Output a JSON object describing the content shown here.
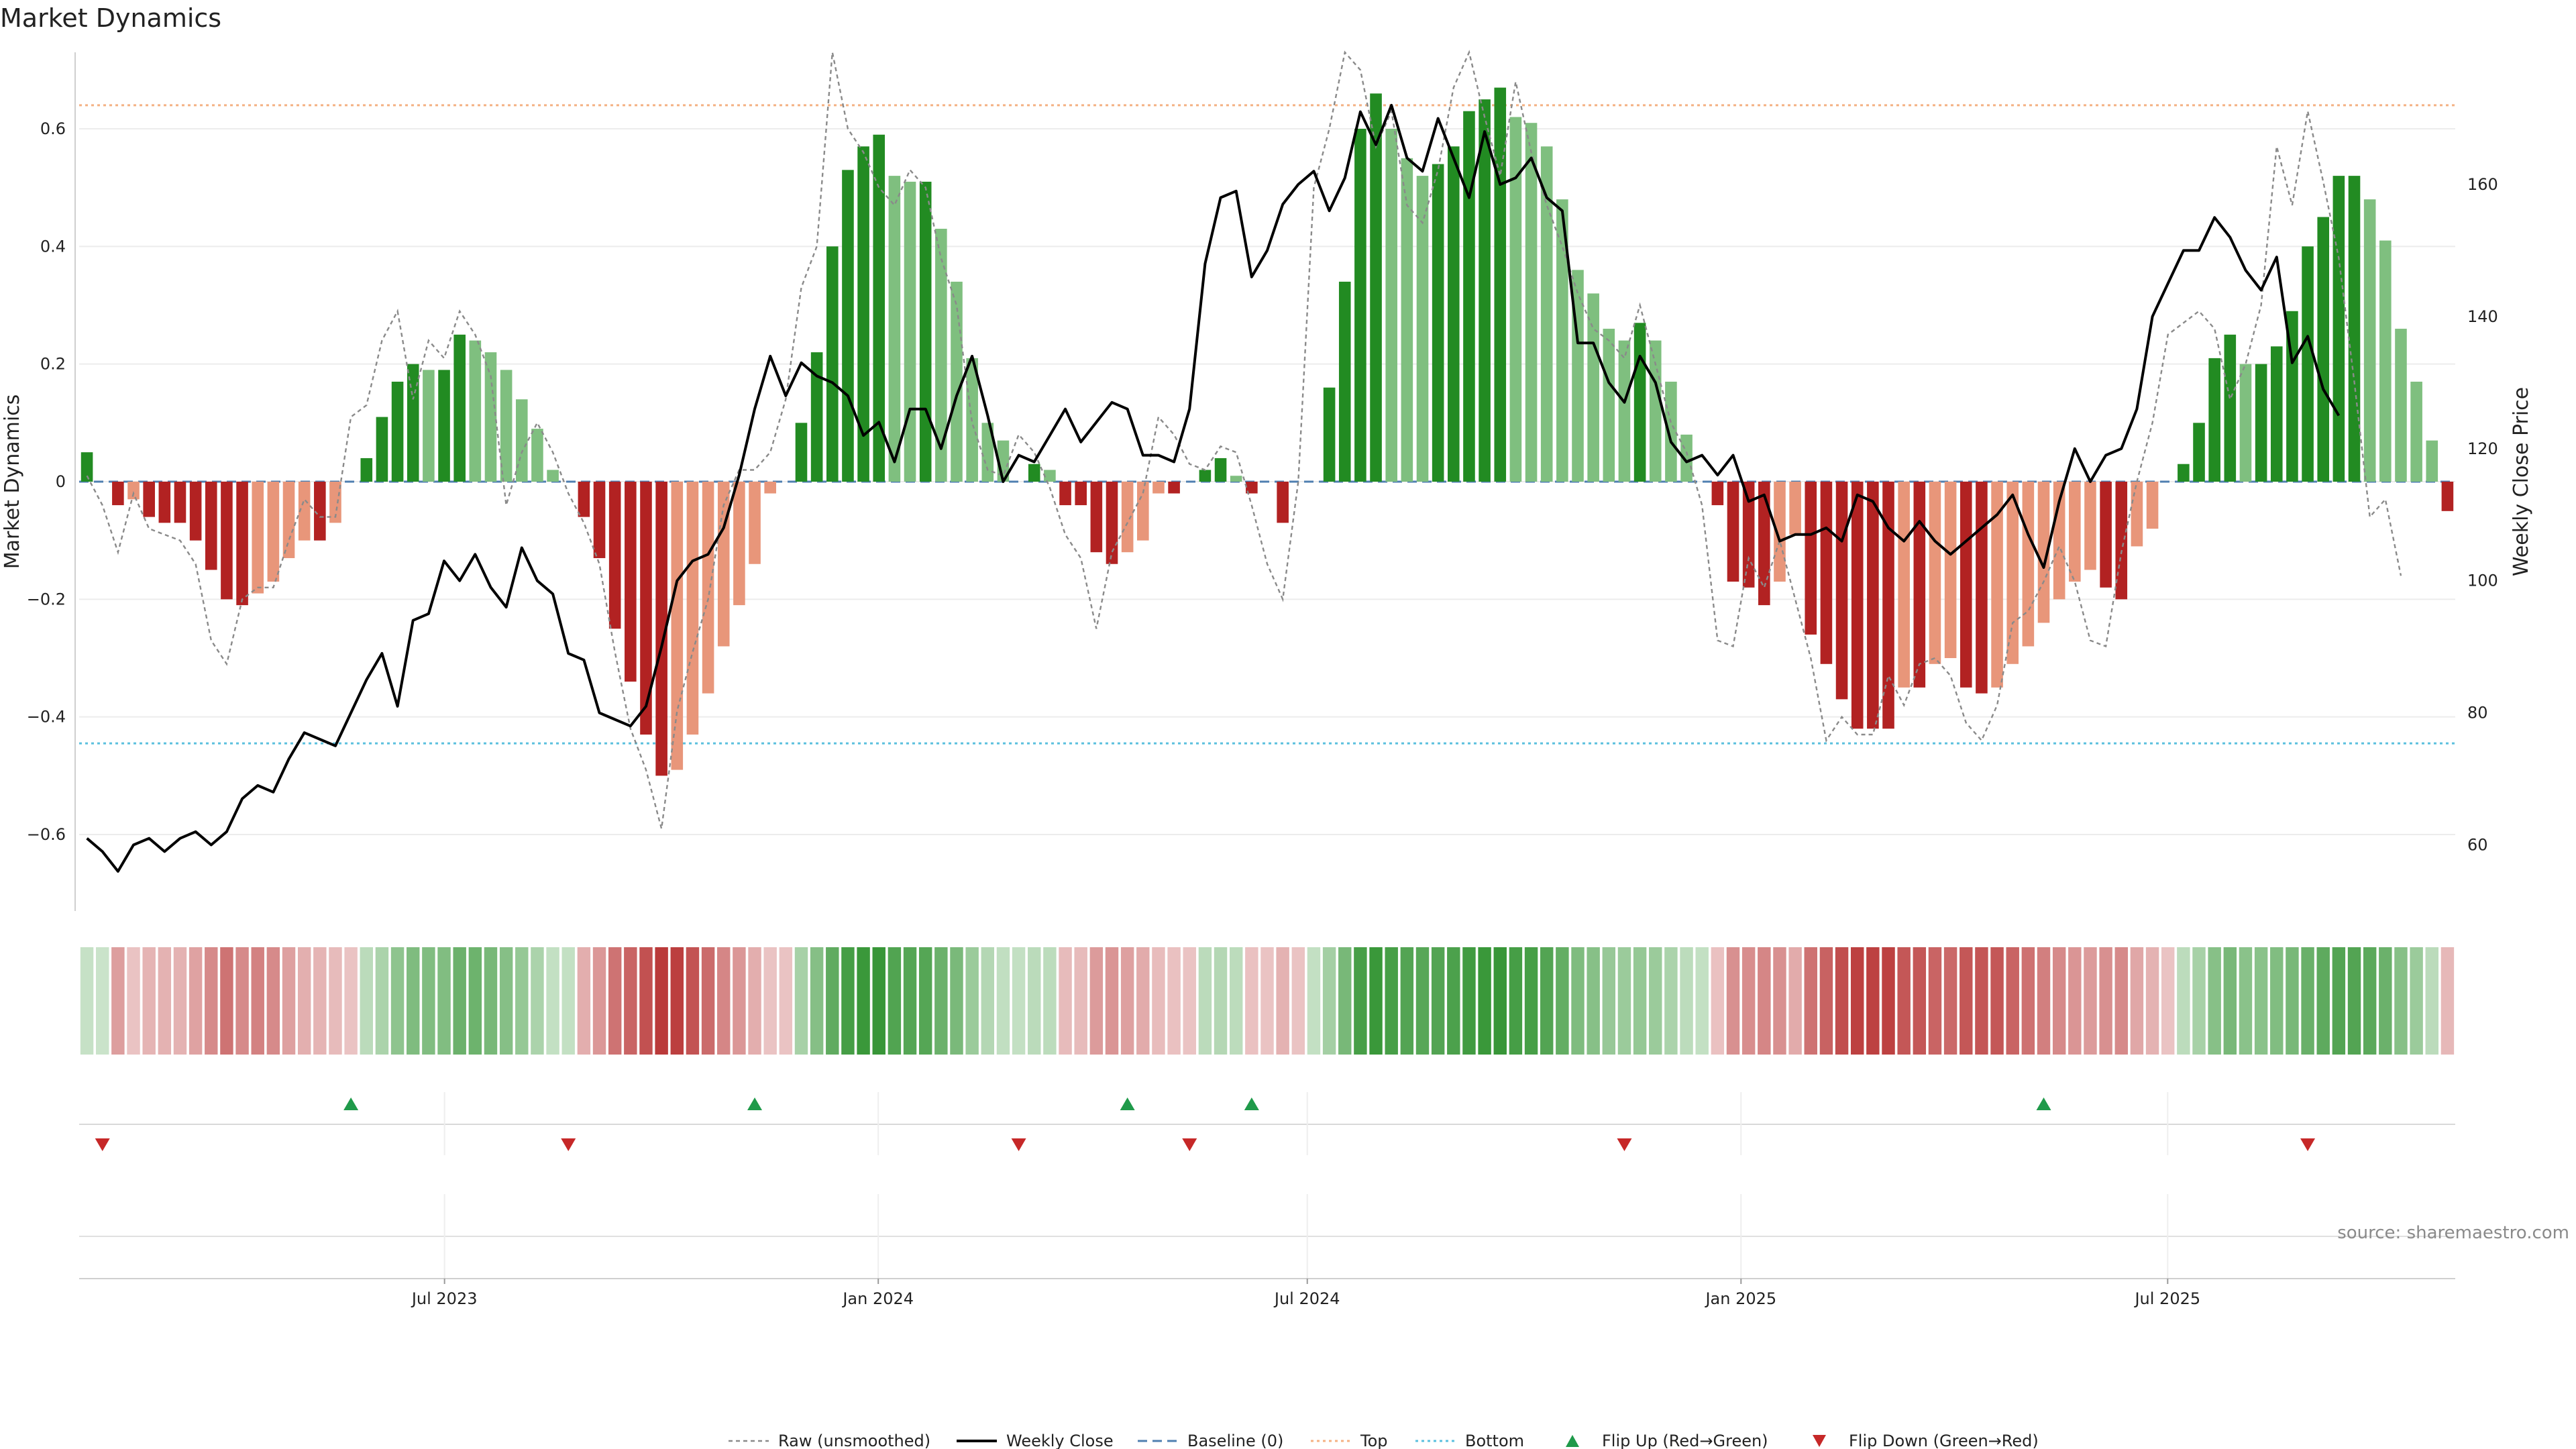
{
  "chart_data": {
    "type": "bar",
    "title": "Market Dynamics",
    "ylabel": "Market Dynamics",
    "y2label": "Weekly Close Price",
    "ylim": [
      -0.73,
      0.73
    ],
    "y2lim": [
      50,
      180
    ],
    "y_ticks": [
      -0.6,
      -0.4,
      -0.2,
      0,
      0.2,
      0.4,
      0.6
    ],
    "y_tick_labels": [
      "−0.6",
      "−0.4",
      "−0.2",
      "0",
      "0.2",
      "0.4",
      "0.6"
    ],
    "y2_ticks": [
      60,
      80,
      100,
      120,
      140,
      160
    ],
    "y2_tick_labels": [
      "60",
      "80",
      "100",
      "120",
      "140",
      "160"
    ],
    "x_start": "2023-01-27",
    "x_end": "2025-10-31",
    "x_ticks": [
      "2023-07-01",
      "2024-01-01",
      "2024-07-01",
      "2025-01-01",
      "2025-07-01"
    ],
    "x_tick_labels": [
      "Jul 2023",
      "Jan 2024",
      "Jul 2024",
      "Jan 2025",
      "Jul 2025"
    ],
    "top_level": 0.64,
    "bottom_level": -0.445,
    "baseline": 0,
    "weeks": 145,
    "smoothed": [
      0.05,
      0.0,
      -0.04,
      -0.03,
      -0.06,
      -0.07,
      -0.07,
      -0.1,
      -0.15,
      -0.2,
      -0.21,
      -0.19,
      -0.17,
      -0.13,
      -0.1,
      -0.1,
      -0.07,
      0.0,
      0.04,
      0.11,
      0.17,
      0.2,
      0.19,
      0.19,
      0.25,
      0.24,
      0.22,
      0.19,
      0.14,
      0.09,
      0.02,
      0.0,
      -0.06,
      -0.13,
      -0.25,
      -0.34,
      -0.43,
      -0.5,
      -0.49,
      -0.43,
      -0.36,
      -0.28,
      -0.21,
      -0.14,
      -0.02,
      0.0,
      0.1,
      0.22,
      0.4,
      0.53,
      0.57,
      0.59,
      0.52,
      0.51,
      0.51,
      0.43,
      0.34,
      0.21,
      0.1,
      0.07,
      0.0,
      0.03,
      0.02,
      -0.04,
      -0.04,
      -0.12,
      -0.14,
      -0.12,
      -0.1,
      -0.02,
      -0.02,
      0.0,
      0.02,
      0.04,
      0.01,
      -0.02,
      0.0,
      -0.07,
      0.0,
      0.0,
      0.16,
      0.34,
      0.6,
      0.66,
      0.6,
      0.55,
      0.52,
      0.54,
      0.57,
      0.63,
      0.65,
      0.67,
      0.62,
      0.61,
      0.57,
      0.48,
      0.36,
      0.32,
      0.26,
      0.24,
      0.27,
      0.24,
      0.17,
      0.08,
      0.0,
      -0.04,
      -0.17,
      -0.18,
      -0.21,
      -0.17,
      -0.09,
      -0.26,
      -0.31,
      -0.37,
      -0.42,
      -0.42,
      -0.42,
      -0.35,
      -0.35,
      -0.31,
      -0.3,
      -0.35,
      -0.36,
      -0.35,
      -0.31,
      -0.28,
      -0.24,
      -0.2,
      -0.17,
      -0.15,
      -0.18,
      -0.2,
      -0.11,
      -0.08,
      0.0,
      0.03,
      0.1,
      0.21,
      0.25,
      0.2,
      0.2,
      0.23,
      0.29,
      0.4,
      0.45,
      0.52,
      0.52,
      0.48,
      0.41,
      0.26,
      0.17,
      0.07,
      -0.05
    ],
    "raw": [
      0.01,
      -0.04,
      -0.12,
      -0.02,
      -0.08,
      -0.09,
      -0.1,
      -0.14,
      -0.27,
      -0.31,
      -0.2,
      -0.18,
      -0.18,
      -0.1,
      -0.03,
      -0.06,
      -0.06,
      0.11,
      0.13,
      0.24,
      0.29,
      0.14,
      0.24,
      0.21,
      0.29,
      0.25,
      0.18,
      -0.04,
      0.05,
      0.1,
      0.05,
      -0.02,
      -0.07,
      -0.14,
      -0.29,
      -0.42,
      -0.49,
      -0.59,
      -0.39,
      -0.29,
      -0.2,
      -0.04,
      0.02,
      0.02,
      0.05,
      0.14,
      0.33,
      0.4,
      0.73,
      0.6,
      0.56,
      0.5,
      0.47,
      0.53,
      0.5,
      0.38,
      0.3,
      0.1,
      0.02,
      0.01,
      0.08,
      0.05,
      -0.01,
      -0.09,
      -0.13,
      -0.25,
      -0.12,
      -0.07,
      -0.02,
      0.11,
      0.08,
      0.03,
      0.02,
      0.06,
      0.05,
      -0.04,
      -0.14,
      -0.2,
      0.0,
      0.5,
      0.6,
      0.73,
      0.7,
      0.57,
      0.63,
      0.47,
      0.44,
      0.53,
      0.67,
      0.73,
      0.62,
      0.52,
      0.68,
      0.56,
      0.47,
      0.4,
      0.32,
      0.26,
      0.24,
      0.21,
      0.3,
      0.2,
      0.1,
      0.05,
      -0.04,
      -0.27,
      -0.28,
      -0.13,
      -0.18,
      -0.1,
      -0.2,
      -0.3,
      -0.44,
      -0.4,
      -0.43,
      -0.43,
      -0.33,
      -0.38,
      -0.31,
      -0.3,
      -0.33,
      -0.41,
      -0.44,
      -0.38,
      -0.24,
      -0.22,
      -0.17,
      -0.11,
      -0.17,
      -0.27,
      -0.28,
      -0.12,
      0.0,
      0.1,
      0.25,
      0.27,
      0.29,
      0.26,
      0.14,
      0.2,
      0.3,
      0.57,
      0.47,
      0.63,
      0.51,
      0.38,
      0.17,
      -0.06,
      -0.03,
      -0.16
    ],
    "close": [
      61,
      59,
      56,
      60,
      61,
      59,
      61,
      62,
      60,
      62,
      67,
      69,
      68,
      73,
      77,
      76,
      75,
      80,
      85,
      89,
      81,
      94,
      95,
      103,
      100,
      104,
      99,
      96,
      105,
      100,
      98,
      89,
      88,
      80,
      79,
      78,
      81,
      90,
      100,
      103,
      104,
      108,
      116,
      126,
      134,
      128,
      133,
      131,
      130,
      128,
      122,
      124,
      118,
      126,
      126,
      120,
      128,
      134,
      125,
      115,
      119,
      118,
      122,
      126,
      121,
      124,
      127,
      126,
      119,
      119,
      118,
      126,
      148,
      158,
      159,
      146,
      150,
      157,
      160,
      162,
      156,
      161,
      171,
      166,
      172,
      164,
      162,
      170,
      164,
      158,
      168,
      160,
      161,
      164,
      158,
      156,
      136,
      136,
      130,
      127,
      134,
      130,
      121,
      118,
      119,
      116,
      119,
      112,
      113,
      106,
      107,
      107,
      108,
      106,
      113,
      112,
      108,
      106,
      109,
      106,
      104,
      106,
      108,
      110,
      113,
      107,
      102,
      112,
      120,
      115,
      119,
      120,
      126,
      140,
      145,
      150,
      150,
      155,
      152,
      147,
      144,
      149,
      133,
      137,
      129,
      125
    ],
    "color_scale": [
      0.11,
      0.08,
      0.36,
      0.12,
      0.22,
      0.24,
      0.24,
      0.33,
      0.49,
      0.62,
      0.48,
      0.54,
      0.48,
      0.35,
      0.25,
      0.22,
      0.18,
      0.12,
      0.18,
      0.28,
      0.46,
      0.55,
      0.54,
      0.54,
      0.68,
      0.66,
      0.6,
      0.52,
      0.41,
      0.28,
      0.12,
      0.12,
      0.26,
      0.4,
      0.62,
      0.72,
      0.85,
      0.98,
      0.96,
      0.84,
      0.68,
      0.52,
      0.4,
      0.26,
      0.12,
      0.12,
      0.3,
      0.52,
      0.75,
      0.92,
      0.98,
      1.0,
      0.85,
      0.82,
      0.82,
      0.68,
      0.58,
      0.38,
      0.22,
      0.14,
      0.12,
      0.18,
      0.16,
      0.18,
      0.18,
      0.38,
      0.42,
      0.35,
      0.28,
      0.16,
      0.14,
      0.12,
      0.18,
      0.22,
      0.16,
      0.14,
      0.12,
      0.24,
      0.12,
      0.12,
      0.32,
      0.6,
      0.9,
      0.98,
      0.9,
      0.84,
      0.8,
      0.84,
      0.88,
      0.95,
      0.98,
      1.0,
      0.92,
      0.9,
      0.84,
      0.72,
      0.55,
      0.5,
      0.4,
      0.38,
      0.42,
      0.38,
      0.28,
      0.16,
      0.12,
      0.14,
      0.44,
      0.46,
      0.52,
      0.44,
      0.28,
      0.64,
      0.74,
      0.86,
      0.95,
      0.95,
      0.95,
      0.8,
      0.8,
      0.72,
      0.7,
      0.8,
      0.82,
      0.8,
      0.72,
      0.64,
      0.56,
      0.48,
      0.42,
      0.38,
      0.44,
      0.48,
      0.3,
      0.24,
      0.12,
      0.16,
      0.3,
      0.5,
      0.6,
      0.48,
      0.48,
      0.54,
      0.6,
      0.7,
      0.76,
      0.84,
      0.84,
      0.78,
      0.68,
      0.5,
      0.38,
      0.18,
      0.2
    ],
    "flip_up_weeks": [
      17,
      43,
      67,
      75,
      126
    ],
    "flip_down_weeks": [
      1,
      31,
      60,
      71,
      99,
      143
    ],
    "legend": {
      "raw": "Raw (unsmoothed)",
      "close": "Weekly Close",
      "baseline": "Baseline (0)",
      "top": "Top",
      "bottom": "Bottom",
      "flip_up": "Flip Up (Red→Green)",
      "flip_down": "Flip Down (Green→Red)"
    },
    "colors": {
      "pos_strong": "#228b22",
      "pos_weak": "#7fbf7f",
      "neg_strong": "#b22222",
      "neg_weak": "#e8967a",
      "raw": "#8a8a8a",
      "close": "#000000",
      "baseline": "#4f7fb0",
      "top": "#f4b183",
      "bottom": "#5bc0de",
      "flip_up": "#1f9a4a",
      "flip_down": "#c62828"
    },
    "source": "source: sharemaestro.com"
  }
}
